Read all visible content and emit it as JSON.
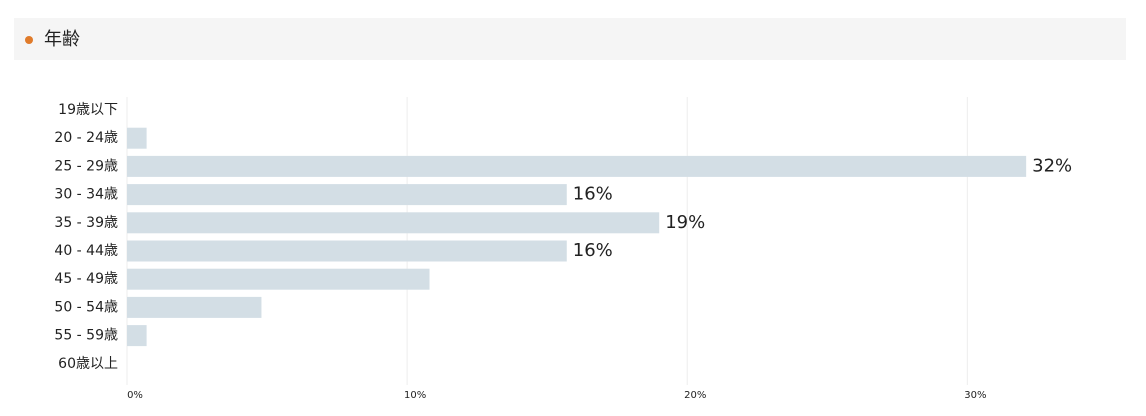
{
  "chart_data": {
    "type": "hbar",
    "title": "年齢",
    "categories": [
      "19歳以下",
      "20 - 24歳",
      "25 - 29歳",
      "30 - 34歳",
      "35 - 39歳",
      "40 - 44歳",
      "45 - 49歳",
      "50 - 54歳",
      "55 - 59歳",
      "60歳以上"
    ],
    "values": [
      0,
      0.7,
      32.1,
      15.7,
      19.0,
      15.7,
      10.8,
      4.8,
      0.7,
      0
    ],
    "value_labels": [
      null,
      null,
      "32%",
      "16%",
      "19%",
      "16%",
      null,
      null,
      null,
      null
    ],
    "color": "#d3dee5",
    "xlim": [
      0,
      35.7
    ],
    "xticks": [
      {
        "value": 0,
        "label": "0%"
      },
      {
        "value": 10,
        "label": "10%"
      },
      {
        "value": 20,
        "label": "20%"
      },
      {
        "value": 30,
        "label": "30%"
      }
    ],
    "grid": true
  }
}
